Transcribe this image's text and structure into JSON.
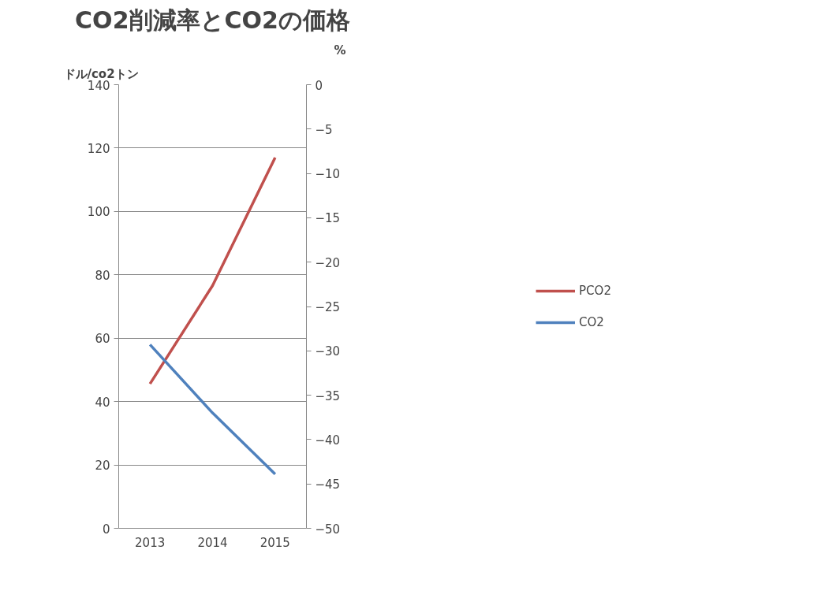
{
  "chart_data": {
    "type": "line",
    "title": "CO2削減率とCO2の価格",
    "ylabel": "ドル/co2トン",
    "y2label": "%",
    "categories": [
      "2013",
      "2014",
      "2015"
    ],
    "series": [
      {
        "name": "PCO2",
        "color": "#c0504d",
        "values": [
          45.6,
          76.6,
          117
        ]
      },
      {
        "name": "CO2",
        "color": "#4f81bd",
        "values": [
          -29.3,
          -37,
          -43.9
        ],
        "axis": "y2"
      }
    ],
    "ylim": [
      0,
      140
    ],
    "yticks": [
      0,
      20,
      40,
      60,
      80,
      100,
      120,
      140
    ],
    "y2lim": [
      -50,
      0
    ],
    "y2ticks": [
      -50,
      -45,
      -40,
      -35,
      -30,
      -25,
      -20,
      -15,
      -10,
      -5,
      0
    ],
    "grid": "y",
    "legend": "right",
    "marker": "none",
    "line_style": "solid"
  }
}
